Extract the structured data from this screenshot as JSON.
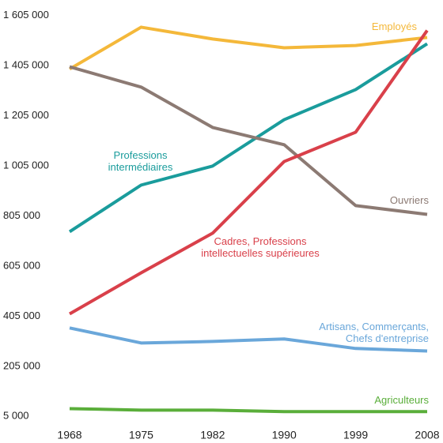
{
  "chart_data": {
    "type": "line",
    "categories": [
      "1968",
      "1975",
      "1982",
      "1990",
      "1999",
      "2008"
    ],
    "series": [
      {
        "name": "Employés",
        "color": "#f4b83a",
        "values": [
          1391000,
          1558000,
          1511000,
          1476000,
          1485000,
          1517000
        ]
      },
      {
        "name": "Professions intermédiaires",
        "color": "#1a9c9c",
        "values": [
          742000,
          928000,
          1004000,
          1189000,
          1309000,
          1492000
        ]
      },
      {
        "name": "Ouvriers",
        "color": "#8c7a73",
        "values": [
          1400000,
          1319000,
          1158000,
          1089000,
          846000,
          811000
        ]
      },
      {
        "name": "Cadres, Professions intellectuelles supérieures",
        "color": "#d9404a",
        "values": [
          414000,
          578000,
          736000,
          1022000,
          1139000,
          1545000
        ]
      },
      {
        "name": "Artisans, Commerçants, Chefs d'entreprise",
        "color": "#6aa7da",
        "values": [
          358000,
          298000,
          304000,
          314000,
          276000,
          266000
        ]
      },
      {
        "name": "Agriculteurs",
        "color": "#5aae3a",
        "values": [
          36000,
          30000,
          30000,
          24000,
          24000,
          24000
        ]
      }
    ],
    "ylim": [
      -35000,
      1635000
    ],
    "yticks": [
      {
        "value": 5000,
        "label": "5 000"
      },
      {
        "value": 205000,
        "label": "205 000"
      },
      {
        "value": 405000,
        "label": "405 000"
      },
      {
        "value": 605000,
        "label": "605 000"
      },
      {
        "value": 805000,
        "label": "805 000"
      },
      {
        "value": 1005000,
        "label": "1 005 000"
      },
      {
        "value": 1205000,
        "label": "1 205 000"
      },
      {
        "value": 1405000,
        "label": "1 405 000"
      },
      {
        "value": 1605000,
        "label": "1 605 000"
      }
    ],
    "grid": false
  }
}
